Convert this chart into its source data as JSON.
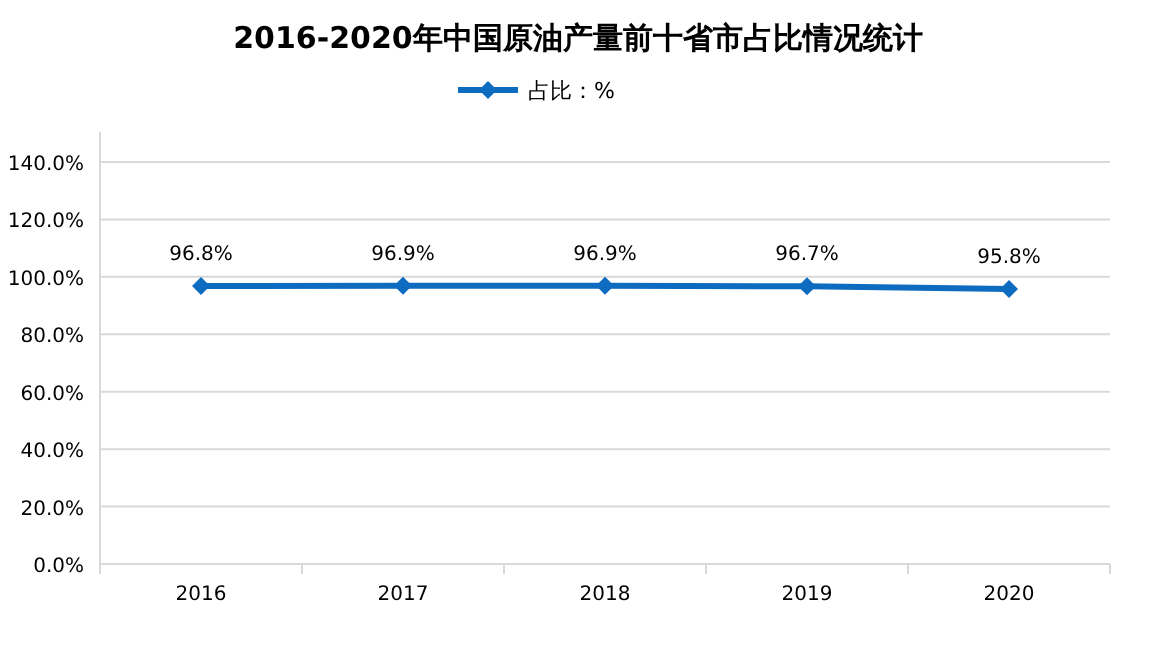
{
  "chart_data": {
    "type": "line",
    "title": "2016-2020年中国原油产量前十省市占比情况统计",
    "categories": [
      "2016",
      "2017",
      "2018",
      "2019",
      "2020"
    ],
    "series": [
      {
        "name": "占比：%",
        "color": "#0e6cc0",
        "values": [
          96.8,
          96.9,
          96.9,
          96.7,
          95.8
        ],
        "value_labels": [
          "96.8%",
          "96.9%",
          "96.9%",
          "96.7%",
          "95.8%"
        ]
      }
    ],
    "ylim": [
      0,
      140
    ],
    "yticks": [
      {
        "value": 0,
        "label": "0.0%"
      },
      {
        "value": 20,
        "label": "20.0%"
      },
      {
        "value": 40,
        "label": "40.0%"
      },
      {
        "value": 60,
        "label": "60.0%"
      },
      {
        "value": 80,
        "label": "80.0%"
      },
      {
        "value": 100,
        "label": "100.0%"
      },
      {
        "value": 120,
        "label": "120.0%"
      },
      {
        "value": 140,
        "label": "140.0%"
      }
    ],
    "grid": "y",
    "legend": "top",
    "marker": "diamond",
    "line_style": "solid"
  }
}
